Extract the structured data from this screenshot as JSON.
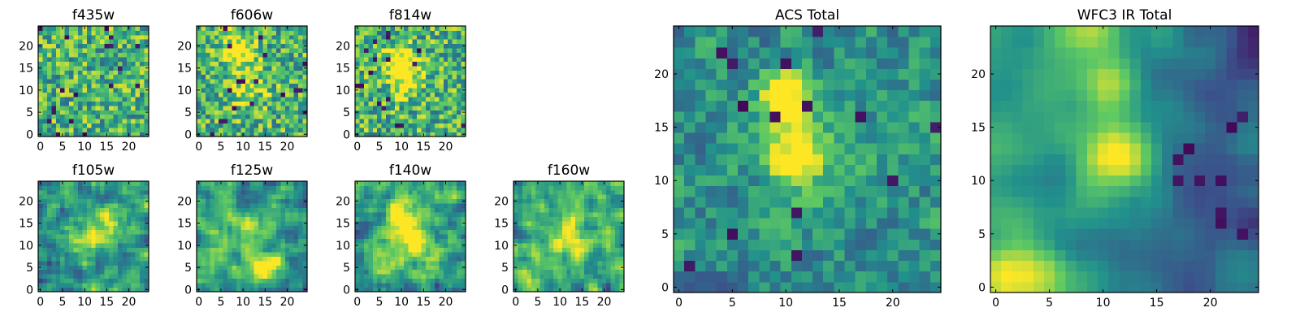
{
  "figure": {
    "colormap": "viridis",
    "colormap_stops": [
      "#440154",
      "#3b528b",
      "#21918c",
      "#5ec962",
      "#fde725"
    ]
  },
  "chart_data": [
    {
      "type": "heatmap",
      "title": "f435w",
      "xlim": [
        -0.5,
        24.5
      ],
      "ylim": [
        -0.5,
        24.5
      ],
      "xticks": [
        0,
        5,
        10,
        15,
        20
      ],
      "yticks": [
        0,
        5,
        10,
        15,
        20
      ],
      "grid": false,
      "legend": "none",
      "texture": "noise",
      "seed": 11,
      "sources": []
    },
    {
      "type": "heatmap",
      "title": "f606w",
      "xlim": [
        -0.5,
        24.5
      ],
      "ylim": [
        -0.5,
        24.5
      ],
      "xticks": [
        0,
        5,
        10,
        15,
        20
      ],
      "yticks": [
        0,
        5,
        10,
        15,
        20
      ],
      "grid": false,
      "legend": "none",
      "texture": "noise",
      "seed": 23,
      "sources": [
        [
          9,
          19,
          2.5,
          0.5
        ],
        [
          11,
          11,
          3,
          0.3
        ]
      ]
    },
    {
      "type": "heatmap",
      "title": "f814w",
      "xlim": [
        -0.5,
        24.5
      ],
      "ylim": [
        -0.5,
        24.5
      ],
      "xticks": [
        0,
        5,
        10,
        15,
        20
      ],
      "yticks": [
        0,
        5,
        10,
        15,
        20
      ],
      "grid": false,
      "legend": "none",
      "texture": "noise",
      "seed": 37,
      "sources": [
        [
          10,
          17,
          2.5,
          0.5
        ],
        [
          11,
          12,
          2.5,
          0.35
        ]
      ]
    },
    {
      "type": "heatmap",
      "title": "f105w",
      "xlim": [
        -0.5,
        24.5
      ],
      "ylim": [
        -0.5,
        24.5
      ],
      "xticks": [
        0,
        5,
        10,
        15,
        20
      ],
      "yticks": [
        0,
        5,
        10,
        15,
        20
      ],
      "grid": false,
      "legend": "none",
      "texture": "smooth",
      "seed": 41,
      "sources": [
        [
          12,
          12,
          3.5,
          0.35
        ],
        [
          15,
          15,
          3,
          0.2
        ]
      ]
    },
    {
      "type": "heatmap",
      "title": "f125w",
      "xlim": [
        -0.5,
        24.5
      ],
      "ylim": [
        -0.5,
        24.5
      ],
      "xticks": [
        0,
        5,
        10,
        15,
        20
      ],
      "yticks": [
        0,
        5,
        10,
        15,
        20
      ],
      "grid": false,
      "legend": "none",
      "texture": "smooth",
      "seed": 53,
      "sources": [
        [
          14,
          5,
          2.5,
          0.45
        ],
        [
          11,
          13,
          3,
          0.2
        ]
      ]
    },
    {
      "type": "heatmap",
      "title": "f140w",
      "xlim": [
        -0.5,
        24.5
      ],
      "ylim": [
        -0.5,
        24.5
      ],
      "xticks": [
        0,
        5,
        10,
        15,
        20
      ],
      "yticks": [
        0,
        5,
        10,
        15,
        20
      ],
      "grid": false,
      "legend": "none",
      "texture": "smooth",
      "seed": 67,
      "sources": [
        [
          10,
          16,
          3,
          0.5
        ],
        [
          12,
          10,
          3.5,
          0.35
        ]
      ]
    },
    {
      "type": "heatmap",
      "title": "f160w",
      "xlim": [
        -0.5,
        24.5
      ],
      "ylim": [
        -0.5,
        24.5
      ],
      "xticks": [
        0,
        5,
        10,
        15,
        20
      ],
      "yticks": [
        0,
        5,
        10,
        15,
        20
      ],
      "grid": false,
      "legend": "none",
      "texture": "smooth",
      "seed": 79,
      "sources": [
        [
          12,
          12,
          4,
          0.4
        ],
        [
          3,
          3,
          3,
          0.3
        ]
      ]
    },
    {
      "type": "heatmap",
      "title": "ACS Total",
      "xlim": [
        -0.5,
        24.5
      ],
      "ylim": [
        -0.5,
        24.5
      ],
      "xticks": [
        0,
        5,
        10,
        15,
        20
      ],
      "yticks": [
        0,
        5,
        10,
        15,
        20
      ],
      "grid": false,
      "legend": "none",
      "texture": "blocky",
      "seed": 97,
      "sources": [
        [
          10,
          18,
          1.6,
          0.7
        ],
        [
          11,
          12,
          1.8,
          0.55
        ],
        [
          12,
          14,
          3.5,
          0.15
        ]
      ]
    },
    {
      "type": "heatmap",
      "title": "WFC3 IR Total",
      "xlim": [
        -0.5,
        24.5
      ],
      "ylim": [
        -0.5,
        24.5
      ],
      "xticks": [
        0,
        5,
        10,
        15,
        20
      ],
      "yticks": [
        0,
        5,
        10,
        15,
        20
      ],
      "grid": false,
      "legend": "none",
      "texture": "gradient",
      "seed": 103,
      "sources": [
        [
          11,
          12,
          2.8,
          0.6
        ],
        [
          10,
          19,
          2.2,
          0.45
        ],
        [
          2,
          1,
          3,
          0.45
        ],
        [
          8,
          24,
          2,
          0.35
        ]
      ]
    }
  ]
}
